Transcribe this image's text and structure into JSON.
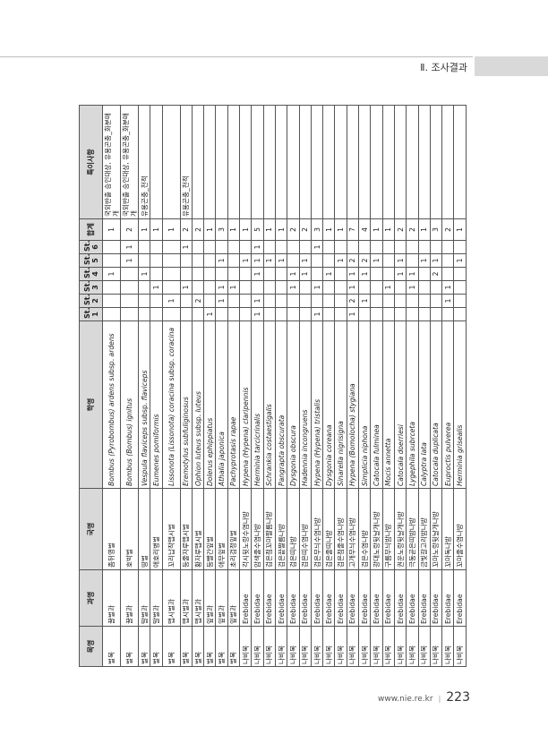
{
  "header": {
    "section_title": "Ⅱ. 조사결과"
  },
  "footer": {
    "url": "www.nie.re.kr",
    "separator": "|",
    "page_number": "223"
  },
  "table": {
    "columns": [
      "목명",
      "과명",
      "국명",
      "학명",
      "St.",
      "St.",
      "St.",
      "St.",
      "St.",
      "St.",
      "합계",
      "특이사항"
    ],
    "station_numbers": [
      "1",
      "2",
      "3",
      "4",
      "5",
      "6"
    ],
    "subsp_label": "subsp.",
    "rows": [
      {
        "order": "벌목",
        "family": "꿀벌과",
        "korean": "좀뒤영벌",
        "sci": "Bombus (Pyrobombus) ardens",
        "subsp": "ardens",
        "st": [
          "",
          "",
          "",
          "1",
          "",
          ""
        ],
        "total": "1",
        "note": "국외반출 승인대상, 유용곤충_화분매개"
      },
      {
        "order": "벌목",
        "family": "꿀벌과",
        "korean": "호박벌",
        "sci": "Bombus (Bombus) ignitus",
        "subsp": "",
        "st": [
          "",
          "",
          "",
          "",
          "1",
          "1"
        ],
        "total": "2",
        "note": "국외반출 승인대상, 유용곤충_화분매개"
      },
      {
        "order": "벌목",
        "family": "말벌과",
        "korean": "땅벌",
        "sci": "Vespula flaviceps",
        "subsp": "flaviceps",
        "st": [
          "",
          "",
          "",
          "1",
          "",
          ""
        ],
        "total": "1",
        "note": "유용곤충_천적"
      },
      {
        "order": "벌목",
        "family": "말벌과",
        "korean": "애호리병벌",
        "sci": "Eumenes pomiformis",
        "subsp": "",
        "st": [
          "",
          "",
          "1",
          "",
          "",
          ""
        ],
        "total": "1",
        "note": ""
      },
      {
        "order": "벌목",
        "family": "맵시벌과",
        "korean": "꼬리납작맵시벌",
        "sci": "Lissonota (Lissonota) coracina",
        "subsp": "coracina",
        "st": [
          "",
          "1",
          "",
          "",
          "",
          ""
        ],
        "total": "1",
        "note": ""
      },
      {
        "order": "벌목",
        "family": "맵시벌과",
        "korean": "등줄자루맵시벌",
        "sci": "Eremotylus subfuliginosus",
        "subsp": "",
        "st": [
          "",
          "",
          "1",
          "",
          "",
          "1"
        ],
        "total": "2",
        "note": "유용곤충_천적"
      },
      {
        "order": "벌목",
        "family": "맵시벌과",
        "korean": "황자루맵시벌",
        "sci": "Ophion luteus",
        "subsp": "luteus",
        "st": [
          "",
          "2",
          "",
          "",
          "",
          ""
        ],
        "total": "2",
        "note": ""
      },
      {
        "order": "벌목",
        "family": "잎벌과",
        "korean": "등빨간잎벌",
        "sci": "Dolerus ephippiatus",
        "subsp": "",
        "st": [
          "1",
          "",
          "",
          "",
          "",
          ""
        ],
        "total": "1",
        "note": ""
      },
      {
        "order": "벌목",
        "family": "잎벌과",
        "korean": "애무잎벌",
        "sci": "Athalia japonica",
        "subsp": "",
        "st": [
          "",
          "1",
          "1",
          "",
          "1",
          ""
        ],
        "total": "3",
        "note": ""
      },
      {
        "order": "벌목",
        "family": "잎벌과",
        "korean": "초리검정잎벌",
        "sci": "Pachyprotasis rapae",
        "subsp": "",
        "st": [
          "",
          "",
          "1",
          "",
          "",
          ""
        ],
        "total": "1",
        "note": ""
      },
      {
        "order": "나비목",
        "family": "Erebidae",
        "korean": "각시뒷노랑수염나방",
        "sci": "Hypena (Hypena) claripennis",
        "subsp": "",
        "st": [
          "",
          "",
          "",
          "",
          "1",
          ""
        ],
        "total": "1",
        "note": ""
      },
      {
        "order": "나비목",
        "family": "Erebidae",
        "korean": "암색줄수염나방",
        "sci": "Herminia tarcicrinalis",
        "subsp": "",
        "st": [
          "1",
          "1",
          "",
          "1",
          "1",
          "1"
        ],
        "total": "5",
        "note": ""
      },
      {
        "order": "나비목",
        "family": "Erebidae",
        "korean": "검은점꼬마짤름나방",
        "sci": "Schrankia costaestigalis",
        "subsp": "",
        "st": [
          "",
          "",
          "",
          "",
          "1",
          ""
        ],
        "total": "1",
        "note": ""
      },
      {
        "order": "나비목",
        "family": "Erebidae",
        "korean": "검은끝짤름나방",
        "sci": "Pangrapta obscurata",
        "subsp": "",
        "st": [
          "",
          "",
          "",
          "",
          "1",
          ""
        ],
        "total": "1",
        "note": ""
      },
      {
        "order": "나비목",
        "family": "Erebidae",
        "korean": "검은띠나방",
        "sci": "Dysgonia obscura",
        "subsp": "",
        "st": [
          "",
          "",
          "1",
          "1",
          "",
          ""
        ],
        "total": "2",
        "note": ""
      },
      {
        "order": "나비목",
        "family": "Erebidae",
        "korean": "검은띠수염나방",
        "sci": "Hadennia incongruens",
        "subsp": "",
        "st": [
          "",
          "",
          "",
          "1",
          "1",
          ""
        ],
        "total": "2",
        "note": ""
      },
      {
        "order": "나비목",
        "family": "Erebidae",
        "korean": "검은무늬수염나방",
        "sci": "Hypena (Hypena) tristalis",
        "subsp": "",
        "st": [
          "1",
          "",
          "1",
          "",
          "",
          "1"
        ],
        "total": "3",
        "note": ""
      },
      {
        "order": "나비목",
        "family": "Erebidae",
        "korean": "검은줄띠나방",
        "sci": "Dysgonia coreana",
        "subsp": "",
        "st": [
          "",
          "",
          "",
          "1",
          "",
          ""
        ],
        "total": "1",
        "note": ""
      },
      {
        "order": "나비목",
        "family": "Erebidae",
        "korean": "검은점줄수염나방",
        "sci": "Sinarella nigrisigna",
        "subsp": "",
        "st": [
          "",
          "",
          "",
          "",
          "1",
          ""
        ],
        "total": "1",
        "note": ""
      },
      {
        "order": "나비목",
        "family": "Erebidae",
        "korean": "고개무늬수염나방",
        "sci": "Hypena (Bomolocha) stygiana",
        "subsp": "",
        "st": [
          "1",
          "2",
          "1",
          "1",
          "2",
          ""
        ],
        "total": "7",
        "note": ""
      },
      {
        "order": "나비목",
        "family": "Erebidae",
        "korean": "검은수염나방",
        "sci": "Simplicia niphona",
        "subsp": "",
        "st": [
          "",
          "1",
          "",
          "1",
          "2",
          ""
        ],
        "total": "4",
        "note": ""
      },
      {
        "order": "나비목",
        "family": "Erebidae",
        "korean": "광대노랑뒷날개나방",
        "sci": "Catocala fulminea",
        "subsp": "",
        "st": [
          "",
          "",
          "",
          "",
          "1",
          ""
        ],
        "total": "1",
        "note": ""
      },
      {
        "order": "나비목",
        "family": "Erebidae",
        "korean": "구름무늬밤나방",
        "sci": "Mocis annetta",
        "subsp": "",
        "st": [
          "",
          "",
          "1",
          "",
          "",
          ""
        ],
        "total": "1",
        "note": ""
      },
      {
        "order": "나비목",
        "family": "Erebidae",
        "korean": "권운노랑뒷날개나방",
        "sci": "Catocala doerriesi",
        "subsp": "",
        "st": [
          "",
          "",
          "",
          "1",
          "1",
          ""
        ],
        "total": "2",
        "note": ""
      },
      {
        "order": "나비목",
        "family": "Erebidae",
        "korean": "극동곧은띠밤나방",
        "sci": "Lygephila subrceta",
        "subsp": "",
        "st": [
          "",
          "",
          "1",
          "1",
          "",
          ""
        ],
        "total": "2",
        "note": ""
      },
      {
        "order": "나비목",
        "family": "Erebidae",
        "korean": "금빛갈고리밤나방",
        "sci": "Calyptra lata",
        "subsp": "",
        "st": [
          "",
          "",
          "",
          "",
          "1",
          ""
        ],
        "total": "1",
        "note": ""
      },
      {
        "order": "나비목",
        "family": "Erebidae",
        "korean": "꼬마노랑뒷날개나방",
        "sci": "Catocala duplicata",
        "subsp": "",
        "st": [
          "",
          "",
          "",
          "2",
          "1",
          ""
        ],
        "total": "3",
        "note": ""
      },
      {
        "order": "나비목",
        "family": "Erebidae",
        "korean": "꼬마독나방",
        "sci": "Euproctis pulverea",
        "subsp": "",
        "st": [
          "",
          "1",
          "1",
          "",
          "",
          ""
        ],
        "total": "2",
        "note": ""
      },
      {
        "order": "나비목",
        "family": "Erebidae",
        "korean": "꼬마줄수염나방",
        "sci": "Herminia grisealis",
        "subsp": "",
        "st": [
          "",
          "",
          "",
          "",
          "1",
          ""
        ],
        "total": "1",
        "note": ""
      }
    ]
  }
}
